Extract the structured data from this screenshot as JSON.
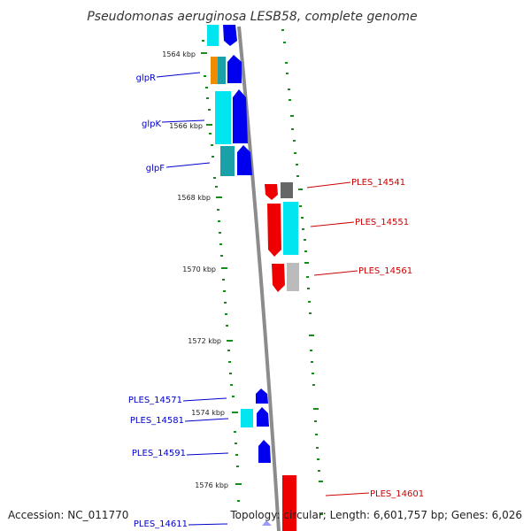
{
  "title": "Pseudomonas aeruginosa LESB58, complete genome",
  "footer": {
    "accession": "Accession: NC_011770",
    "topology": "Topology: circular; Length: 6,601,757 bp; Genes: 6,026"
  },
  "colors": {
    "forward_label": "#0000cc",
    "reverse_label": "#cc0000",
    "tick": "#1a8a1a",
    "backbone": "#888888",
    "cds_forward": "#0000ee",
    "cds_reverse": "#ee0000",
    "cyan": "#00e5f0",
    "teal": "#1aa0a8",
    "orange": "#f08c00",
    "dark_gray": "#666666",
    "light_gray": "#bbbbbb"
  },
  "ticks": [
    {
      "label": "1564 kbp"
    },
    {
      "label": "1566 kbp"
    },
    {
      "label": "1568 kbp"
    },
    {
      "label": "1570 kbp"
    },
    {
      "label": "1572 kbp"
    },
    {
      "label": "1574 kbp"
    },
    {
      "label": "1576 kbp"
    }
  ],
  "genes_forward": [
    {
      "label": "glpR"
    },
    {
      "label": "glpK"
    },
    {
      "label": "glpF"
    },
    {
      "label": "PLES_14571"
    },
    {
      "label": "PLES_14581"
    },
    {
      "label": "PLES_14591"
    },
    {
      "label": "PLES_14611"
    }
  ],
  "genes_reverse": [
    {
      "label": "PLES_14541"
    },
    {
      "label": "PLES_14551"
    },
    {
      "label": "PLES_14561"
    },
    {
      "label": "PLES_14601"
    }
  ]
}
